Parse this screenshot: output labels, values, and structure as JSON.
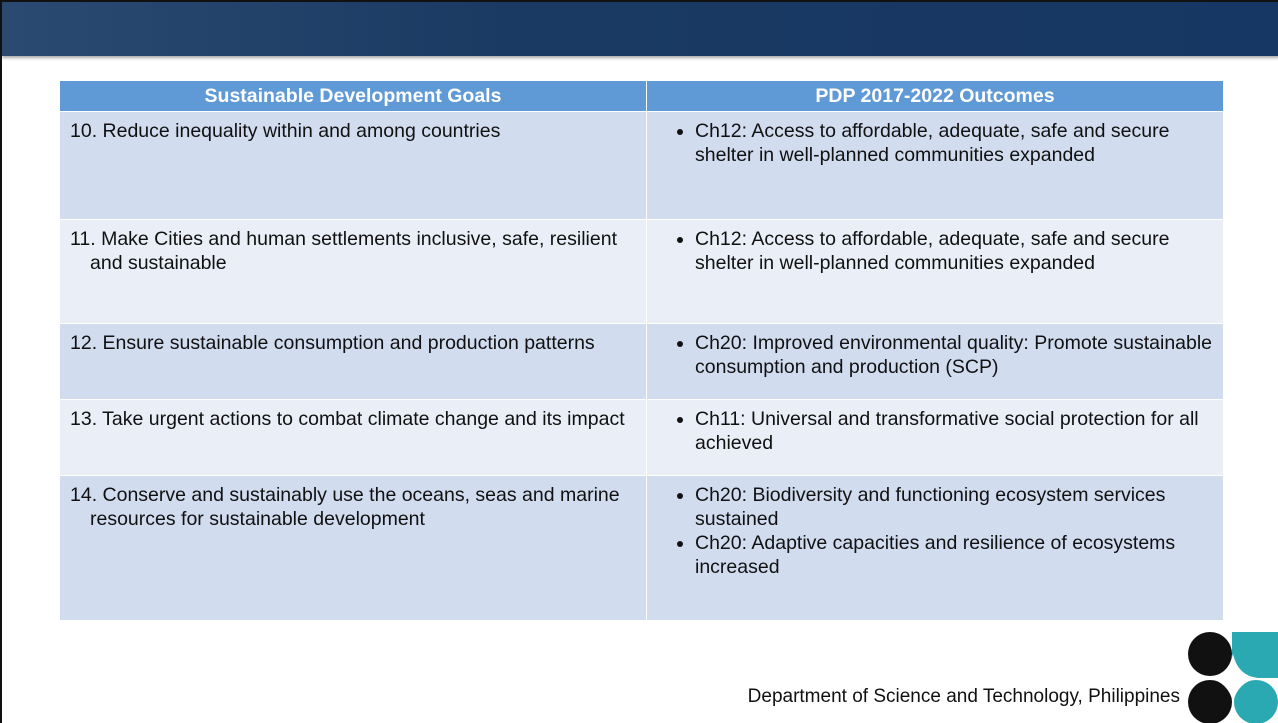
{
  "table": {
    "headers": [
      "Sustainable Development Goals",
      "PDP 2017-2022 Outcomes"
    ],
    "rows": [
      {
        "goal": "10. Reduce inequality within and among countries",
        "outcomes": [
          "Ch12: Access to affordable, adequate, safe and secure shelter in well-planned communities expanded"
        ]
      },
      {
        "goal": "11. Make Cities and human settlements inclusive, safe, resilient and sustainable",
        "outcomes": [
          "Ch12: Access to affordable, adequate, safe and secure shelter in well-planned communities expanded"
        ]
      },
      {
        "goal": "12. Ensure sustainable consumption and production patterns",
        "outcomes": [
          "Ch20: Improved environmental quality: Promote sustainable consumption and production (SCP)"
        ]
      },
      {
        "goal": "13. Take urgent actions to combat climate change and its impact",
        "outcomes": [
          "Ch11: Universal and transformative social protection for all achieved"
        ]
      },
      {
        "goal": "14. Conserve and sustainably use the oceans, seas and marine resources for sustainable development",
        "outcomes": [
          "Ch20: Biodiversity and functioning ecosystem services sustained",
          "Ch20: Adaptive capacities and resilience of ecosystems increased"
        ]
      }
    ]
  },
  "footer": {
    "organization": "Department of Science and Technology, Philippines"
  }
}
